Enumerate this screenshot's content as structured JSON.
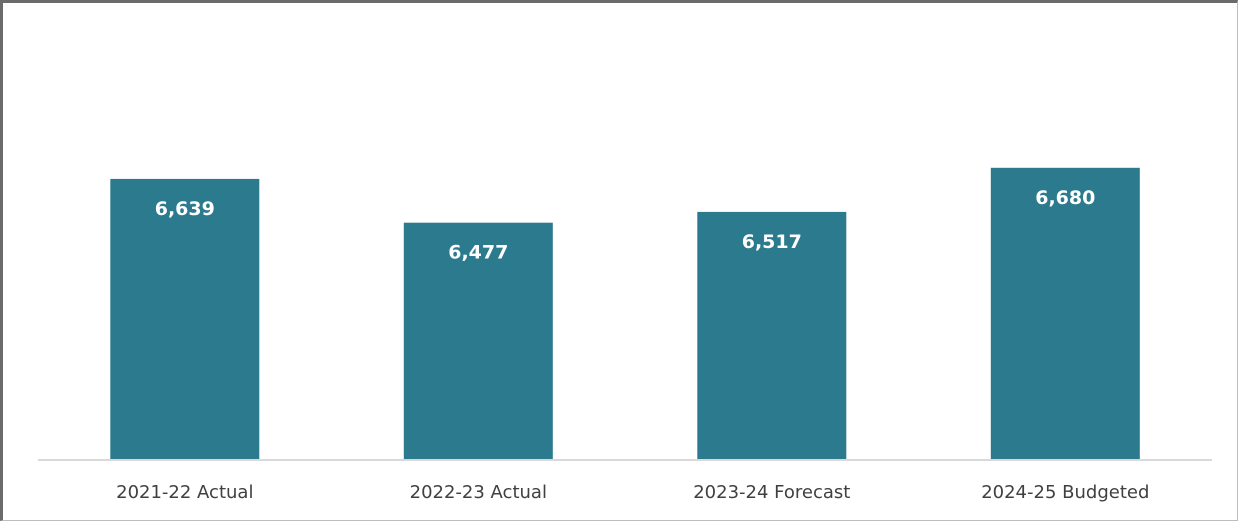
{
  "chart_data": {
    "type": "bar",
    "title": "",
    "xlabel": "",
    "ylabel": "",
    "categories": [
      "2021-22 Actual",
      "2022-23 Actual",
      "2023-24 Forecast",
      "2024-25 Budgeted"
    ],
    "values": [
      6639,
      6477,
      6517,
      6680
    ],
    "value_labels": [
      "6,639",
      "6,477",
      "6,517",
      "6,680"
    ],
    "ylim": [
      5600,
      7300
    ],
    "grid": false,
    "legend": "none",
    "bar_color": "#2b7a8e"
  }
}
